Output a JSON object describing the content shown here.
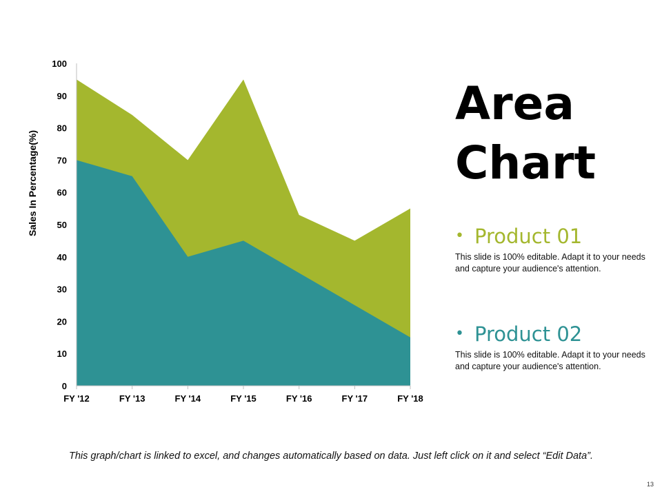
{
  "chart_data": {
    "type": "area",
    "categories": [
      "FY '12",
      "FY '13",
      "FY '14",
      "FY '15",
      "FY '16",
      "FY '17",
      "FY '18"
    ],
    "series": [
      {
        "name": "Product 02",
        "values": [
          70,
          65,
          40,
          45,
          35,
          25,
          15
        ],
        "color": "#2e9294"
      },
      {
        "name": "Product 01",
        "values": [
          95,
          84,
          70,
          95,
          53,
          45,
          55
        ],
        "color": "#a4b72e"
      }
    ],
    "ylabel": "Sales In Percentage(%)",
    "xlabel": "",
    "ylim": [
      0,
      100
    ],
    "yticks": [
      0,
      10,
      20,
      30,
      40,
      50,
      60,
      70,
      80,
      90,
      100
    ],
    "grid": false,
    "stacked": false
  },
  "title_line1": "Area",
  "title_line2": "Chart",
  "products": [
    {
      "name": "Product 01",
      "color": "#a4b72e",
      "description": "This slide is 100% editable. Adapt it to your needs and capture your audience's attention."
    },
    {
      "name": "Product 02",
      "color": "#2e9294",
      "description": "This slide is 100% editable. Adapt it to your needs and capture your audience's attention."
    }
  ],
  "bullet_symbol": "•",
  "footer_note": "This graph/chart is linked to excel, and changes automatically based on data. Just left click on it and select “Edit Data”.",
  "page_number": "13"
}
